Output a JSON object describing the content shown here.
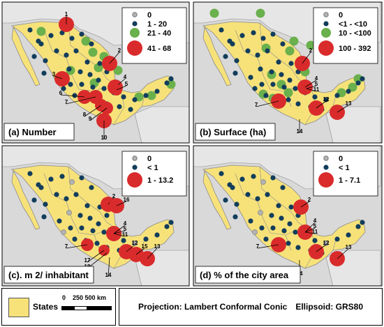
{
  "colors": {
    "background": "#d9d9d9",
    "mexico": "#f7e27a",
    "border": "#8a8a8a",
    "class0": "#b3b3b3",
    "class1": "#123d5c",
    "class2": "#6ab04c",
    "class3": "#d92b2b"
  },
  "panels": [
    {
      "label": "(a) Number",
      "legend": [
        {
          "text": "0",
          "cls": 0
        },
        {
          "text": "1 - 20",
          "cls": 1
        },
        {
          "text": "21 - 40",
          "cls": 2
        },
        {
          "text": "41 - 68",
          "cls": 3
        }
      ],
      "numbers": [
        "1",
        "2",
        "3",
        "4",
        "5",
        "6",
        "7",
        "8",
        "9",
        "10"
      ]
    },
    {
      "label": "(b) Surface (ha)",
      "legend": [
        {
          "text": "0",
          "cls": 0
        },
        {
          "text": "<1 - <10",
          "cls": 1
        },
        {
          "text": "10 - <100",
          "cls": 2
        },
        {
          "text": "100 - 392",
          "cls": 3
        }
      ],
      "numbers": [
        "2",
        "4",
        "5",
        "11",
        "7",
        "12",
        "13",
        "14"
      ]
    },
    {
      "label": "(c). m 2/ inhabitant",
      "legend": [
        {
          "text": "0",
          "cls": 0
        },
        {
          "text": "< 1",
          "cls": 1
        },
        {
          "text": "1 - 13.2",
          "cls": 3
        }
      ],
      "numbers": [
        "2",
        "16",
        "4",
        "5",
        "11",
        "7",
        "12",
        "15",
        "13",
        "17",
        "18",
        "14"
      ]
    },
    {
      "label": "(d) % of the city area",
      "legend": [
        {
          "text": "0",
          "cls": 0
        },
        {
          "text": "< 1",
          "cls": 1
        },
        {
          "text": "1 - 7.1",
          "cls": 3
        }
      ],
      "numbers": [
        "2",
        "4",
        "5",
        "11",
        "7",
        "12",
        "13",
        "14"
      ]
    }
  ],
  "footer": {
    "states_label": "States",
    "scale_label": "0    250 500 km",
    "projection": "Projection: Lambert Conformal Conic",
    "ellipsoid": "Ellipsoid: GRS80"
  }
}
